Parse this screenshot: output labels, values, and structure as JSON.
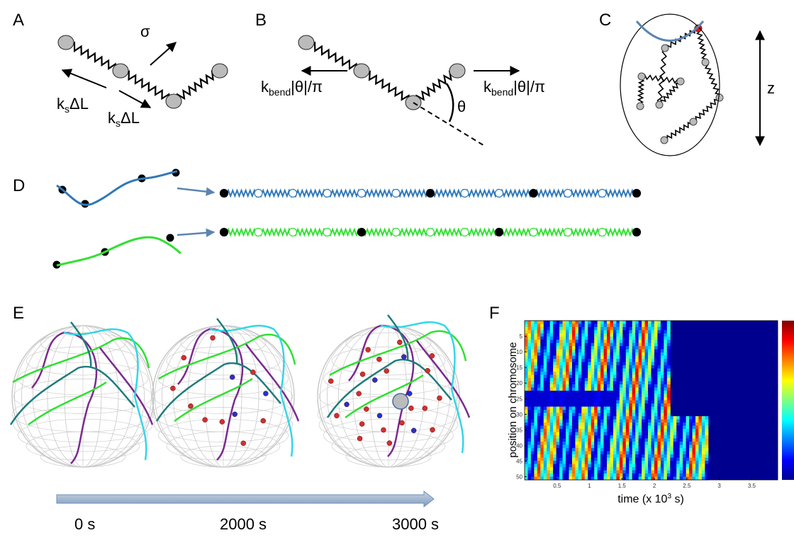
{
  "panel_labels": [
    "A",
    "B",
    "C",
    "D",
    "E",
    "F"
  ],
  "panel_a": {
    "sigma": "σ",
    "spring_forces": [
      {
        "k": "k",
        "sub": "s",
        "rest": "ΔL"
      },
      {
        "k": "k",
        "sub": "s",
        "rest": "ΔL"
      }
    ]
  },
  "panel_b": {
    "bend_forces": [
      {
        "k": "k",
        "sub": "bend",
        "rest": "|θ|/π"
      },
      {
        "k": "k",
        "sub": "bend",
        "rest": "|θ|/π"
      }
    ],
    "angle": "θ"
  },
  "panel_c": {
    "axis": "z"
  },
  "panel_e": {
    "times": [
      "0 s",
      "2000 s",
      "3000 s"
    ]
  },
  "panel_f": {
    "xlabel": {
      "text": "time (x 10",
      "sup": "3",
      "end": " s)"
    },
    "ylabel": "position on chromosome",
    "xlim": [
      0,
      3.9
    ],
    "ylim": [
      0,
      51
    ],
    "xticks": [
      0.5,
      1,
      1.5,
      2,
      2.5,
      3,
      3.5
    ],
    "yticks": [
      5,
      10,
      15,
      20,
      25,
      30,
      35,
      40,
      45,
      50
    ]
  }
}
